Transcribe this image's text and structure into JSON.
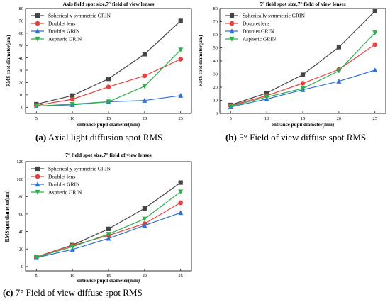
{
  "colors": {
    "Spherically symmetric GRIN": "#444444",
    "Doublet lens": "#e8423c",
    "Doublet GRIN": "#2e6fd4",
    "Aspheric GRIN": "#2bb24c"
  },
  "markers": {
    "Spherically symmetric GRIN": "square",
    "Doublet lens": "circle",
    "Doublet GRIN": "triangle-up",
    "Aspheric GRIN": "triangle-down"
  },
  "captions": {
    "a": {
      "letter": "(a)",
      "text": " Axial light diffusion spot RMS"
    },
    "b": {
      "letter": "(b)",
      "text": " 5° Field of view diffuse spot RMS"
    },
    "c": {
      "letter": "(c)",
      "text": " 7° Field of view diffuse spot RMS"
    }
  },
  "chart_data": [
    {
      "type": "line",
      "title": "Axis field spot size,7° field of view lenses",
      "xlabel": "entrance pupil diameter(mm)",
      "ylabel": "RMS spot diameter(μm)",
      "x": [
        5,
        10,
        15,
        20,
        25
      ],
      "xlim": [
        3.5,
        26.5
      ],
      "ylim": [
        -5,
        80
      ],
      "yticks": [
        0,
        10,
        20,
        30,
        40,
        50,
        60,
        70,
        80
      ],
      "legend_position": "top-left",
      "series": [
        {
          "name": "Spherically symmetric GRIN",
          "values": [
            2.5,
            9.5,
            23,
            43,
            70
          ]
        },
        {
          "name": "Doublet lens",
          "values": [
            1.5,
            6.5,
            16.5,
            25.5,
            39
          ]
        },
        {
          "name": "Doublet GRIN",
          "values": [
            1,
            2,
            4.5,
            5.5,
            9.5
          ]
        },
        {
          "name": "Aspheric GRIN",
          "values": [
            1,
            2.5,
            4.5,
            17,
            46.5
          ]
        }
      ]
    },
    {
      "type": "line",
      "title": "5° field spot size,7° field of view lenses",
      "xlabel": "entrance pupil diameter(mm)",
      "ylabel": "RMS spot diameter(μm)",
      "x": [
        5,
        10,
        15,
        20,
        25
      ],
      "xlim": [
        3.5,
        26.5
      ],
      "ylim": [
        0,
        80
      ],
      "yticks": [
        0,
        10,
        20,
        30,
        40,
        50,
        60,
        70,
        80
      ],
      "legend_position": "top-left",
      "series": [
        {
          "name": "Spherically symmetric GRIN",
          "values": [
            6.5,
            15.5,
            29.5,
            50.5,
            78
          ]
        },
        {
          "name": "Doublet lens",
          "values": [
            6,
            13.5,
            23,
            33.5,
            52.5
          ]
        },
        {
          "name": "Doublet GRIN",
          "values": [
            5,
            11,
            18,
            24.5,
            33
          ]
        },
        {
          "name": "Aspheric GRIN",
          "values": [
            5.5,
            12.5,
            19,
            32.5,
            61.5
          ]
        }
      ]
    },
    {
      "type": "line",
      "title": "7° field spot size,7° field of view lenses",
      "xlabel": "entrance pupil diameter(mm)",
      "ylabel": "RMS spot diameter(μm)",
      "x": [
        5,
        10,
        15,
        20,
        25
      ],
      "xlim": [
        3.5,
        26.5
      ],
      "ylim": [
        -5,
        120
      ],
      "yticks": [
        0,
        20,
        40,
        60,
        80,
        100,
        120
      ],
      "legend_position": "top-left",
      "series": [
        {
          "name": "Spherically symmetric GRIN",
          "values": [
            11,
            24.5,
            43,
            66.5,
            96
          ]
        },
        {
          "name": "Doublet lens",
          "values": [
            11,
            24,
            35.5,
            49,
            73
          ]
        },
        {
          "name": "Doublet GRIN",
          "values": [
            10,
            19.5,
            32,
            47,
            61.5
          ]
        },
        {
          "name": "Aspheric GRIN",
          "values": [
            10.5,
            22.5,
            37,
            54.5,
            85.5
          ]
        }
      ]
    }
  ]
}
